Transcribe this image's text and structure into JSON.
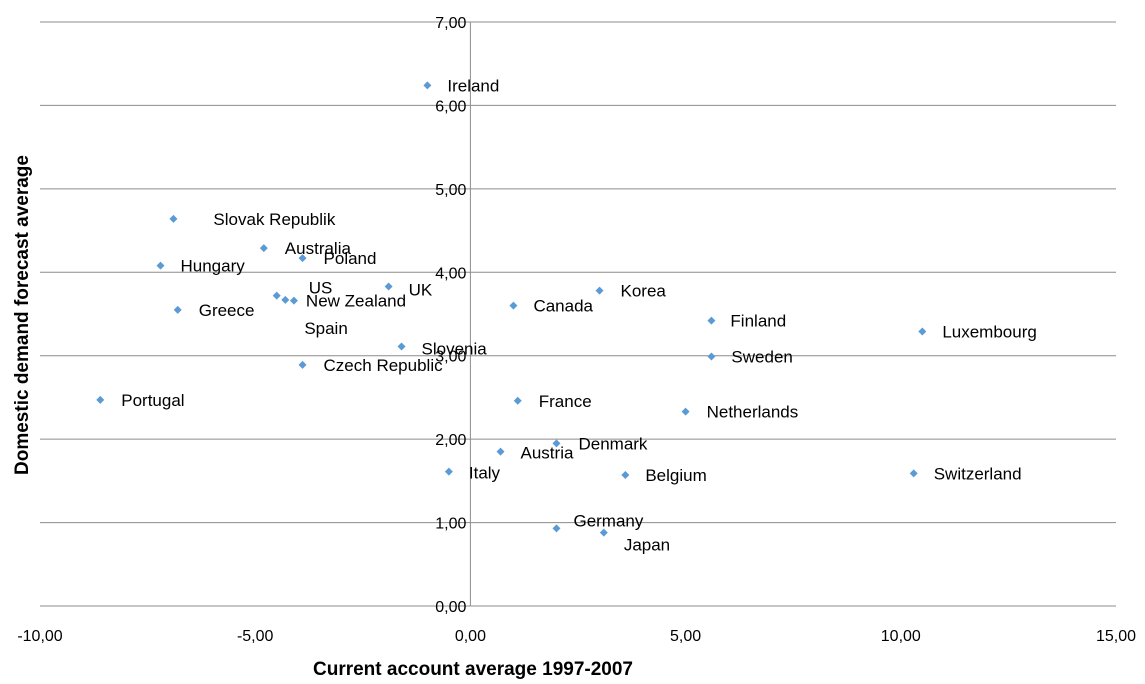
{
  "chart_data": {
    "type": "scatter",
    "title": "",
    "xlabel": "Current account average 1997-2007",
    "ylabel": "Domestic demand forecast average",
    "xlim": [
      -10,
      15
    ],
    "ylim": [
      0,
      7
    ],
    "x_ticks": [
      -10,
      -5,
      0,
      5,
      10,
      15
    ],
    "x_tick_labels": [
      "-10,00",
      "-5,00",
      "0,00",
      "5,00",
      "10,00",
      "15,00"
    ],
    "y_ticks": [
      0,
      1,
      2,
      3,
      4,
      5,
      6,
      7
    ],
    "y_tick_labels": [
      "0,00",
      "1,00",
      "2,00",
      "3,00",
      "4,00",
      "5,00",
      "6,00",
      "7,00"
    ],
    "grid": "horizontal",
    "marker_color": "#5b9bd5",
    "points": [
      {
        "label": "Ireland",
        "x": -1.0,
        "y": 6.24
      },
      {
        "label": "Slovak Republik",
        "x": -6.9,
        "y": 4.64
      },
      {
        "label": "Australia",
        "x": -4.8,
        "y": 4.29
      },
      {
        "label": "Poland",
        "x": -3.9,
        "y": 4.17
      },
      {
        "label": "Hungary",
        "x": -7.2,
        "y": 4.08
      },
      {
        "label": "US",
        "x": -4.5,
        "y": 3.72
      },
      {
        "label": "New Zealand",
        "x": -4.1,
        "y": 3.66
      },
      {
        "label": "Spain",
        "x": -4.3,
        "y": 3.67
      },
      {
        "label": "UK",
        "x": -1.9,
        "y": 3.83
      },
      {
        "label": "Greece",
        "x": -6.8,
        "y": 3.55
      },
      {
        "label": "Slovenia",
        "x": -1.6,
        "y": 3.11
      },
      {
        "label": "Czech Republic",
        "x": -3.9,
        "y": 2.89
      },
      {
        "label": "Portugal",
        "x": -8.6,
        "y": 2.47
      },
      {
        "label": "Canada",
        "x": 1.0,
        "y": 3.6
      },
      {
        "label": "Korea",
        "x": 3.0,
        "y": 3.78
      },
      {
        "label": "Finland",
        "x": 5.6,
        "y": 3.42
      },
      {
        "label": "Luxembourg",
        "x": 10.5,
        "y": 3.29
      },
      {
        "label": "Sweden",
        "x": 5.6,
        "y": 2.99
      },
      {
        "label": "France",
        "x": 1.1,
        "y": 2.46
      },
      {
        "label": "Netherlands",
        "x": 5.0,
        "y": 2.33
      },
      {
        "label": "Denmark",
        "x": 2.0,
        "y": 1.95
      },
      {
        "label": "Austria",
        "x": 0.7,
        "y": 1.85
      },
      {
        "label": "Italy",
        "x": -0.5,
        "y": 1.61
      },
      {
        "label": "Belgium",
        "x": 3.6,
        "y": 1.57
      },
      {
        "label": "Switzerland",
        "x": 10.3,
        "y": 1.59
      },
      {
        "label": "Germany",
        "x": 2.0,
        "y": 0.93
      },
      {
        "label": "Japan",
        "x": 3.1,
        "y": 0.88
      }
    ]
  }
}
